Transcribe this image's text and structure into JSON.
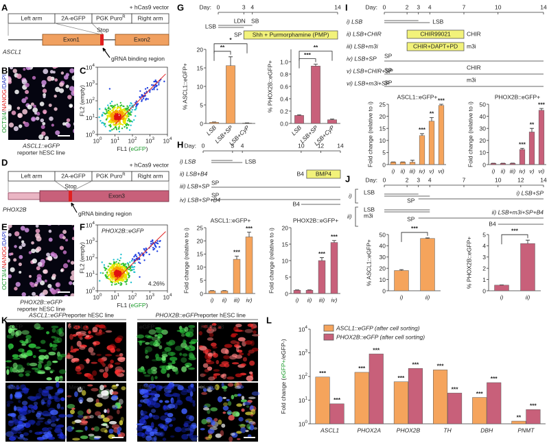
{
  "panels": [
    "A",
    "B",
    "C",
    "D",
    "E",
    "F",
    "G",
    "H",
    "I",
    "J",
    "K",
    "L"
  ],
  "A": {
    "vector": "+ hCas9 vector",
    "left_arm": "Left arm",
    "egfp": "2A-eGFP",
    "puro": "PGK Puro",
    "puro_sup": "R",
    "right_arm": "Right arm",
    "stop": "Stop",
    "exon1": "Exon1",
    "exon2": "Exon2",
    "gene": "ASCL1",
    "grna": "gRNA binding region"
  },
  "B": {
    "stain": [
      "OCT3/4",
      "/",
      "NANOG",
      "/DAPI"
    ],
    "reporter": "ASCL1::eGFP",
    "caption": "reporter hESC line"
  },
  "D": {
    "vector": "+ hCas9 vector",
    "left_arm": "Left arm",
    "egfp": "2A-eGFP",
    "puro": "PGK Puro",
    "puro_sup": "R",
    "right_arm": "Right arm",
    "stop": "Stop",
    "exon3": "Exon3",
    "gene": "PHOX2B",
    "grna": "gRNA binding region"
  },
  "E": {
    "stain": [
      "OCT3/4",
      "/",
      "NANOG",
      "/DAPI"
    ],
    "reporter": "PHOX2B::eGFP",
    "caption": "reporter hESC line"
  },
  "G_timeline": {
    "day": "Day:",
    "days": [
      0,
      3,
      4,
      14
    ],
    "lsb": "LSB",
    "ldn": "LDN",
    "sb": "SB",
    "sp": "SP",
    "pmp": "Shh + Purmorphamine (PMP)"
  },
  "H_timeline": {
    "day": "Day:",
    "days": [
      0,
      3,
      4,
      10,
      12,
      14
    ],
    "rows": [
      "i) LSB",
      "ii) LSB+B4",
      "iii) LSB+SP",
      "iv) LSB+SP+B4"
    ],
    "lsb": "LSB",
    "b4": "B4",
    "bmp4": "BMP4",
    "sp": "SP"
  },
  "I_timeline": {
    "day": "Day:",
    "days": [
      0,
      2,
      3,
      4,
      7,
      10,
      14
    ],
    "rows": [
      "i) LSB",
      "ii) LSB+CHIR",
      "iii) LSB+m3i",
      "iv) LSB+SP",
      "v) LSB+CHIR+SP",
      "vi) LSB+m3i+SP"
    ],
    "lsb": "LSB",
    "chir99021": "CHIR99021",
    "chir": "CHIR",
    "m3i_box": "CHIR+DAPT+PD",
    "m3i": "m3i",
    "sp": "SP"
  },
  "J_timeline": {
    "day": "Day:",
    "days": [
      0,
      2,
      3,
      4,
      7,
      10,
      12,
      14
    ],
    "lsb": "LSB",
    "sp": "SP",
    "m3i": "m3i",
    "b4": "B4",
    "row_marks": [
      "i)",
      "ii)"
    ],
    "rows": [
      "i) LSB+SP",
      "ii) LSB+m3i+SP+B4"
    ]
  },
  "K": {
    "left_reporter": "ASCL1::eGFP",
    "right_reporter": "PHOX2B::eGFP",
    "header": " reporter hESC line",
    "left_tiles": [
      "eGFP",
      "ASCL1",
      "DAPI",
      "Merge"
    ],
    "right_tiles": [
      "eGFP",
      "PHOX2B",
      "DAPI",
      "Merge"
    ]
  },
  "chart_data": [
    {
      "type": "density",
      "xlabel_parts": [
        "FL1 (",
        "eGFP",
        ")"
      ],
      "ylabel": "FL2 (empty)",
      "log_scale": true,
      "xlim": [
        1,
        10000
      ],
      "ylim": [
        1,
        10000
      ],
      "xticks": [
        {
          "value": 1,
          "label": "10^0"
        },
        {
          "value": 10,
          "label": "10^1"
        },
        {
          "value": 100,
          "label": "10^2"
        },
        {
          "value": 1000,
          "label": "10^3"
        },
        {
          "value": 10000,
          "label": "10^4"
        }
      ],
      "yticks": [
        {
          "value": 1,
          "label": "10^0"
        },
        {
          "value": 10,
          "label": "10^1"
        },
        {
          "value": 100,
          "label": "10^2"
        },
        {
          "value": 1000,
          "label": "10^3"
        },
        {
          "value": 10000,
          "label": "10^4"
        }
      ]
    },
    {
      "type": "density",
      "title": "PHOX2B::eGFP",
      "annotation": "4.26%",
      "xlabel_parts": [
        "FL1 (",
        "eGFP",
        ")"
      ],
      "ylabel": "FL2 (empty)",
      "log_scale": true,
      "xlim": [
        1,
        10000
      ],
      "ylim": [
        1,
        10000
      ],
      "xticks": [
        {
          "value": 1,
          "label": "10^0"
        },
        {
          "value": 10,
          "label": "10^1"
        },
        {
          "value": 100,
          "label": "10^2"
        },
        {
          "value": 1000,
          "label": "10^3"
        },
        {
          "value": 10000,
          "label": "10^4"
        }
      ],
      "yticks": [
        {
          "value": 1,
          "label": "10^0"
        },
        {
          "value": 10,
          "label": "10^1"
        },
        {
          "value": 100,
          "label": "10^2"
        },
        {
          "value": 1000,
          "label": "10^3"
        },
        {
          "value": 10000,
          "label": "10^4"
        }
      ]
    },
    {
      "type": "bar",
      "ylabel": "% ASCL1::eGFP+",
      "categories": [
        "LSB",
        "LSB+SP",
        "LSB+CyP"
      ],
      "values": [
        0.3,
        15.6,
        0.1
      ],
      "errors": [
        0.1,
        2.4,
        0.05
      ],
      "color": "#f5a45c",
      "ylim": [
        0,
        20
      ],
      "yticks": [
        0,
        5,
        10,
        15,
        20
      ],
      "brackets": [
        "**",
        "*"
      ]
    },
    {
      "type": "bar",
      "ylabel": "% PHOX2B::eGFP+",
      "categories": [
        "LSB",
        "LSB+SP",
        "LSB+CyP"
      ],
      "values": [
        0.13,
        0.93,
        0.06
      ],
      "errors": [
        0.01,
        0.03,
        0.01
      ],
      "color": "#c8607a",
      "ylim": [
        0,
        1.2
      ],
      "yticks": [
        {
          "value": 0,
          "label": "0.0"
        },
        0.2,
        0.4,
        0.6,
        0.8,
        {
          "value": 1,
          "label": "1.0"
        }
      ],
      "brackets": [
        "***",
        "**"
      ]
    },
    {
      "type": "bar",
      "title": "ASCL1::eGFP+",
      "ylabel": "Fold change (relative to i)",
      "categories": [
        "i)",
        "ii)",
        "iii)",
        "iv)"
      ],
      "values": [
        1,
        1,
        13,
        21.5
      ],
      "errors": [
        0.1,
        0.1,
        1.2,
        1.8
      ],
      "annotations": [
        null,
        null,
        "***",
        "***"
      ],
      "color": "#f5a45c",
      "ylim": [
        0,
        25
      ],
      "yticks": [
        0,
        5,
        10,
        15,
        20,
        25
      ]
    },
    {
      "type": "bar",
      "title": "PHOX2B::eGFP+",
      "ylabel": "Fold change (relative to i)",
      "categories": [
        "i)",
        "ii)",
        "iii)",
        "iv)"
      ],
      "values": [
        1,
        1,
        10,
        15.5
      ],
      "errors": [
        0.1,
        0.1,
        0.9,
        0.6
      ],
      "annotations": [
        null,
        null,
        "***",
        "***"
      ],
      "color": "#c8607a",
      "ylim": [
        0,
        20
      ],
      "yticks": [
        0,
        5,
        10,
        15,
        20
      ]
    },
    {
      "type": "bar",
      "title": "ASCL1::eGFP+",
      "ylabel": "Fold change (relative to i)",
      "categories": [
        "i)",
        "ii)",
        "iii)",
        "iv)",
        "v)",
        "vi)"
      ],
      "values": [
        1,
        1,
        1,
        12,
        18,
        24.5
      ],
      "errors": [
        0.1,
        0.1,
        0.8,
        0.8,
        1.5,
        0.5
      ],
      "annotations": [
        null,
        null,
        null,
        "***",
        "**",
        "***"
      ],
      "color": "#f5a45c",
      "ylim": [
        0,
        25
      ],
      "yticks": [
        0,
        5,
        10,
        15,
        20,
        25
      ]
    },
    {
      "type": "bar",
      "title": "PHOX2B::eGFP+",
      "ylabel": "Fold change (relative to i)",
      "categories": [
        "i)",
        "ii)",
        "iii)",
        "iv)",
        "v)",
        "vi)"
      ],
      "values": [
        1,
        1,
        1,
        12.5,
        27,
        45
      ],
      "errors": [
        0.1,
        0.1,
        0.2,
        1,
        3,
        1.5
      ],
      "annotations": [
        null,
        null,
        null,
        "***",
        "**",
        "***"
      ],
      "color": "#c8607a",
      "ylim": [
        0,
        50
      ],
      "yticks": [
        0,
        10,
        20,
        30,
        40,
        50
      ]
    },
    {
      "type": "bar",
      "ylabel": "% ASCL1::eGFP+",
      "categories": [
        "i)",
        "ii)"
      ],
      "values": [
        18,
        46.5
      ],
      "errors": [
        0.8,
        0.5
      ],
      "color": "#f5a45c",
      "ylim": [
        0,
        50
      ],
      "yticks": [
        0,
        10,
        20,
        30,
        40,
        50
      ],
      "brackets": [
        "***"
      ]
    },
    {
      "type": "bar",
      "ylabel": "% PHOX2B::eGFP+",
      "categories": [
        "i)",
        "ii)"
      ],
      "values": [
        0.5,
        4.2
      ],
      "errors": [
        0.02,
        0.3
      ],
      "color": "#c8607a",
      "ylim": [
        0,
        5
      ],
      "yticks": [
        0,
        1,
        2,
        3,
        4,
        5
      ],
      "brackets": [
        "***"
      ]
    },
    {
      "type": "bar",
      "log_scale": true,
      "ylabel_parts": [
        "Fold change (",
        "eGFP+",
        "/eGFP-)"
      ],
      "categories": [
        "ASCL1",
        "PHOX2A",
        "PHOX2B",
        "TH",
        "DBH",
        "PNMT"
      ],
      "series": [
        {
          "name": "ASCL1::eGFP (after cell sorting)",
          "color": "#f5a45c",
          "values": [
            95,
            150,
            60,
            190,
            13,
            1.3
          ],
          "annotations": [
            "***",
            "***",
            "***",
            "***",
            "***",
            "**"
          ]
        },
        {
          "name": "PHOX2B::eGFP (after cell sorting)",
          "color": "#c8607a",
          "values": [
            7,
            900,
            220,
            20,
            55,
            4
          ],
          "annotations": [
            "***",
            "***",
            "***",
            "***",
            "***",
            "***"
          ]
        }
      ],
      "ylim": [
        1,
        10000
      ],
      "yticks": [
        {
          "value": 1,
          "label": "10^0"
        },
        {
          "value": 10,
          "label": "10^1"
        },
        {
          "value": 100,
          "label": "10^2"
        },
        {
          "value": 1000,
          "label": "10^3"
        },
        {
          "value": 10000,
          "label": "10^4"
        }
      ]
    }
  ]
}
